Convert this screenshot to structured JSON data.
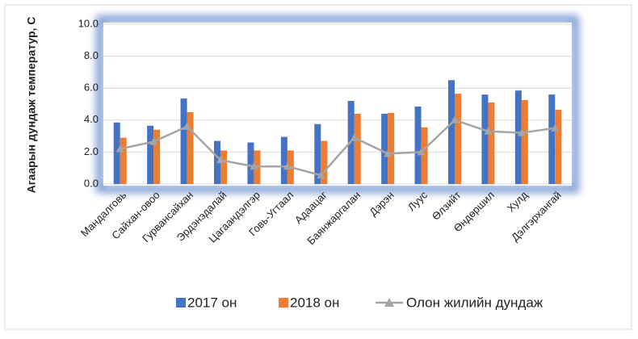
{
  "chart_data": {
    "type": "bar",
    "y_label": "Агаарын дундаж температур, C",
    "categories": [
      "Мандалговь",
      "Сайхан-овоо",
      "Гурвансайхан",
      "Эрдэнэдалай",
      "Цагаандэлгэр",
      "Говь-Угтаал",
      "Адаацаг",
      "Баянжаргалан",
      "Дэрэн",
      "Луус",
      "Өлзийт",
      "Өндөршил",
      "Хулд",
      "Дэлгэрхангай"
    ],
    "series": [
      {
        "name": "2017 он",
        "type": "bar",
        "color": "#4472c4",
        "values": [
          3.85,
          3.65,
          5.35,
          2.7,
          2.6,
          2.95,
          3.75,
          5.2,
          4.4,
          4.85,
          6.5,
          5.6,
          5.85,
          5.6
        ]
      },
      {
        "name": "2018 он",
        "type": "bar",
        "color": "#ed7d31",
        "values": [
          2.9,
          3.4,
          4.5,
          2.1,
          2.1,
          2.1,
          2.7,
          4.4,
          4.45,
          3.55,
          5.65,
          5.1,
          5.25,
          4.65
        ]
      },
      {
        "name": "Олон жилийн дундаж",
        "type": "line",
        "color": "#a5a5a5",
        "values": [
          2.2,
          2.65,
          3.6,
          1.5,
          1.1,
          1.1,
          0.55,
          2.9,
          1.9,
          2.0,
          4.0,
          3.3,
          3.2,
          3.5
        ]
      }
    ],
    "ylim": [
      0,
      10
    ],
    "yticks": [
      {
        "value": 0,
        "label": "0.0"
      },
      {
        "value": 2,
        "label": "2.0"
      },
      {
        "value": 4,
        "label": "4.0"
      },
      {
        "value": 6,
        "label": "6.0"
      },
      {
        "value": 8,
        "label": "8.0"
      },
      {
        "value": 10,
        "label": "10.0"
      }
    ],
    "grid": true,
    "legend": "bottom"
  }
}
